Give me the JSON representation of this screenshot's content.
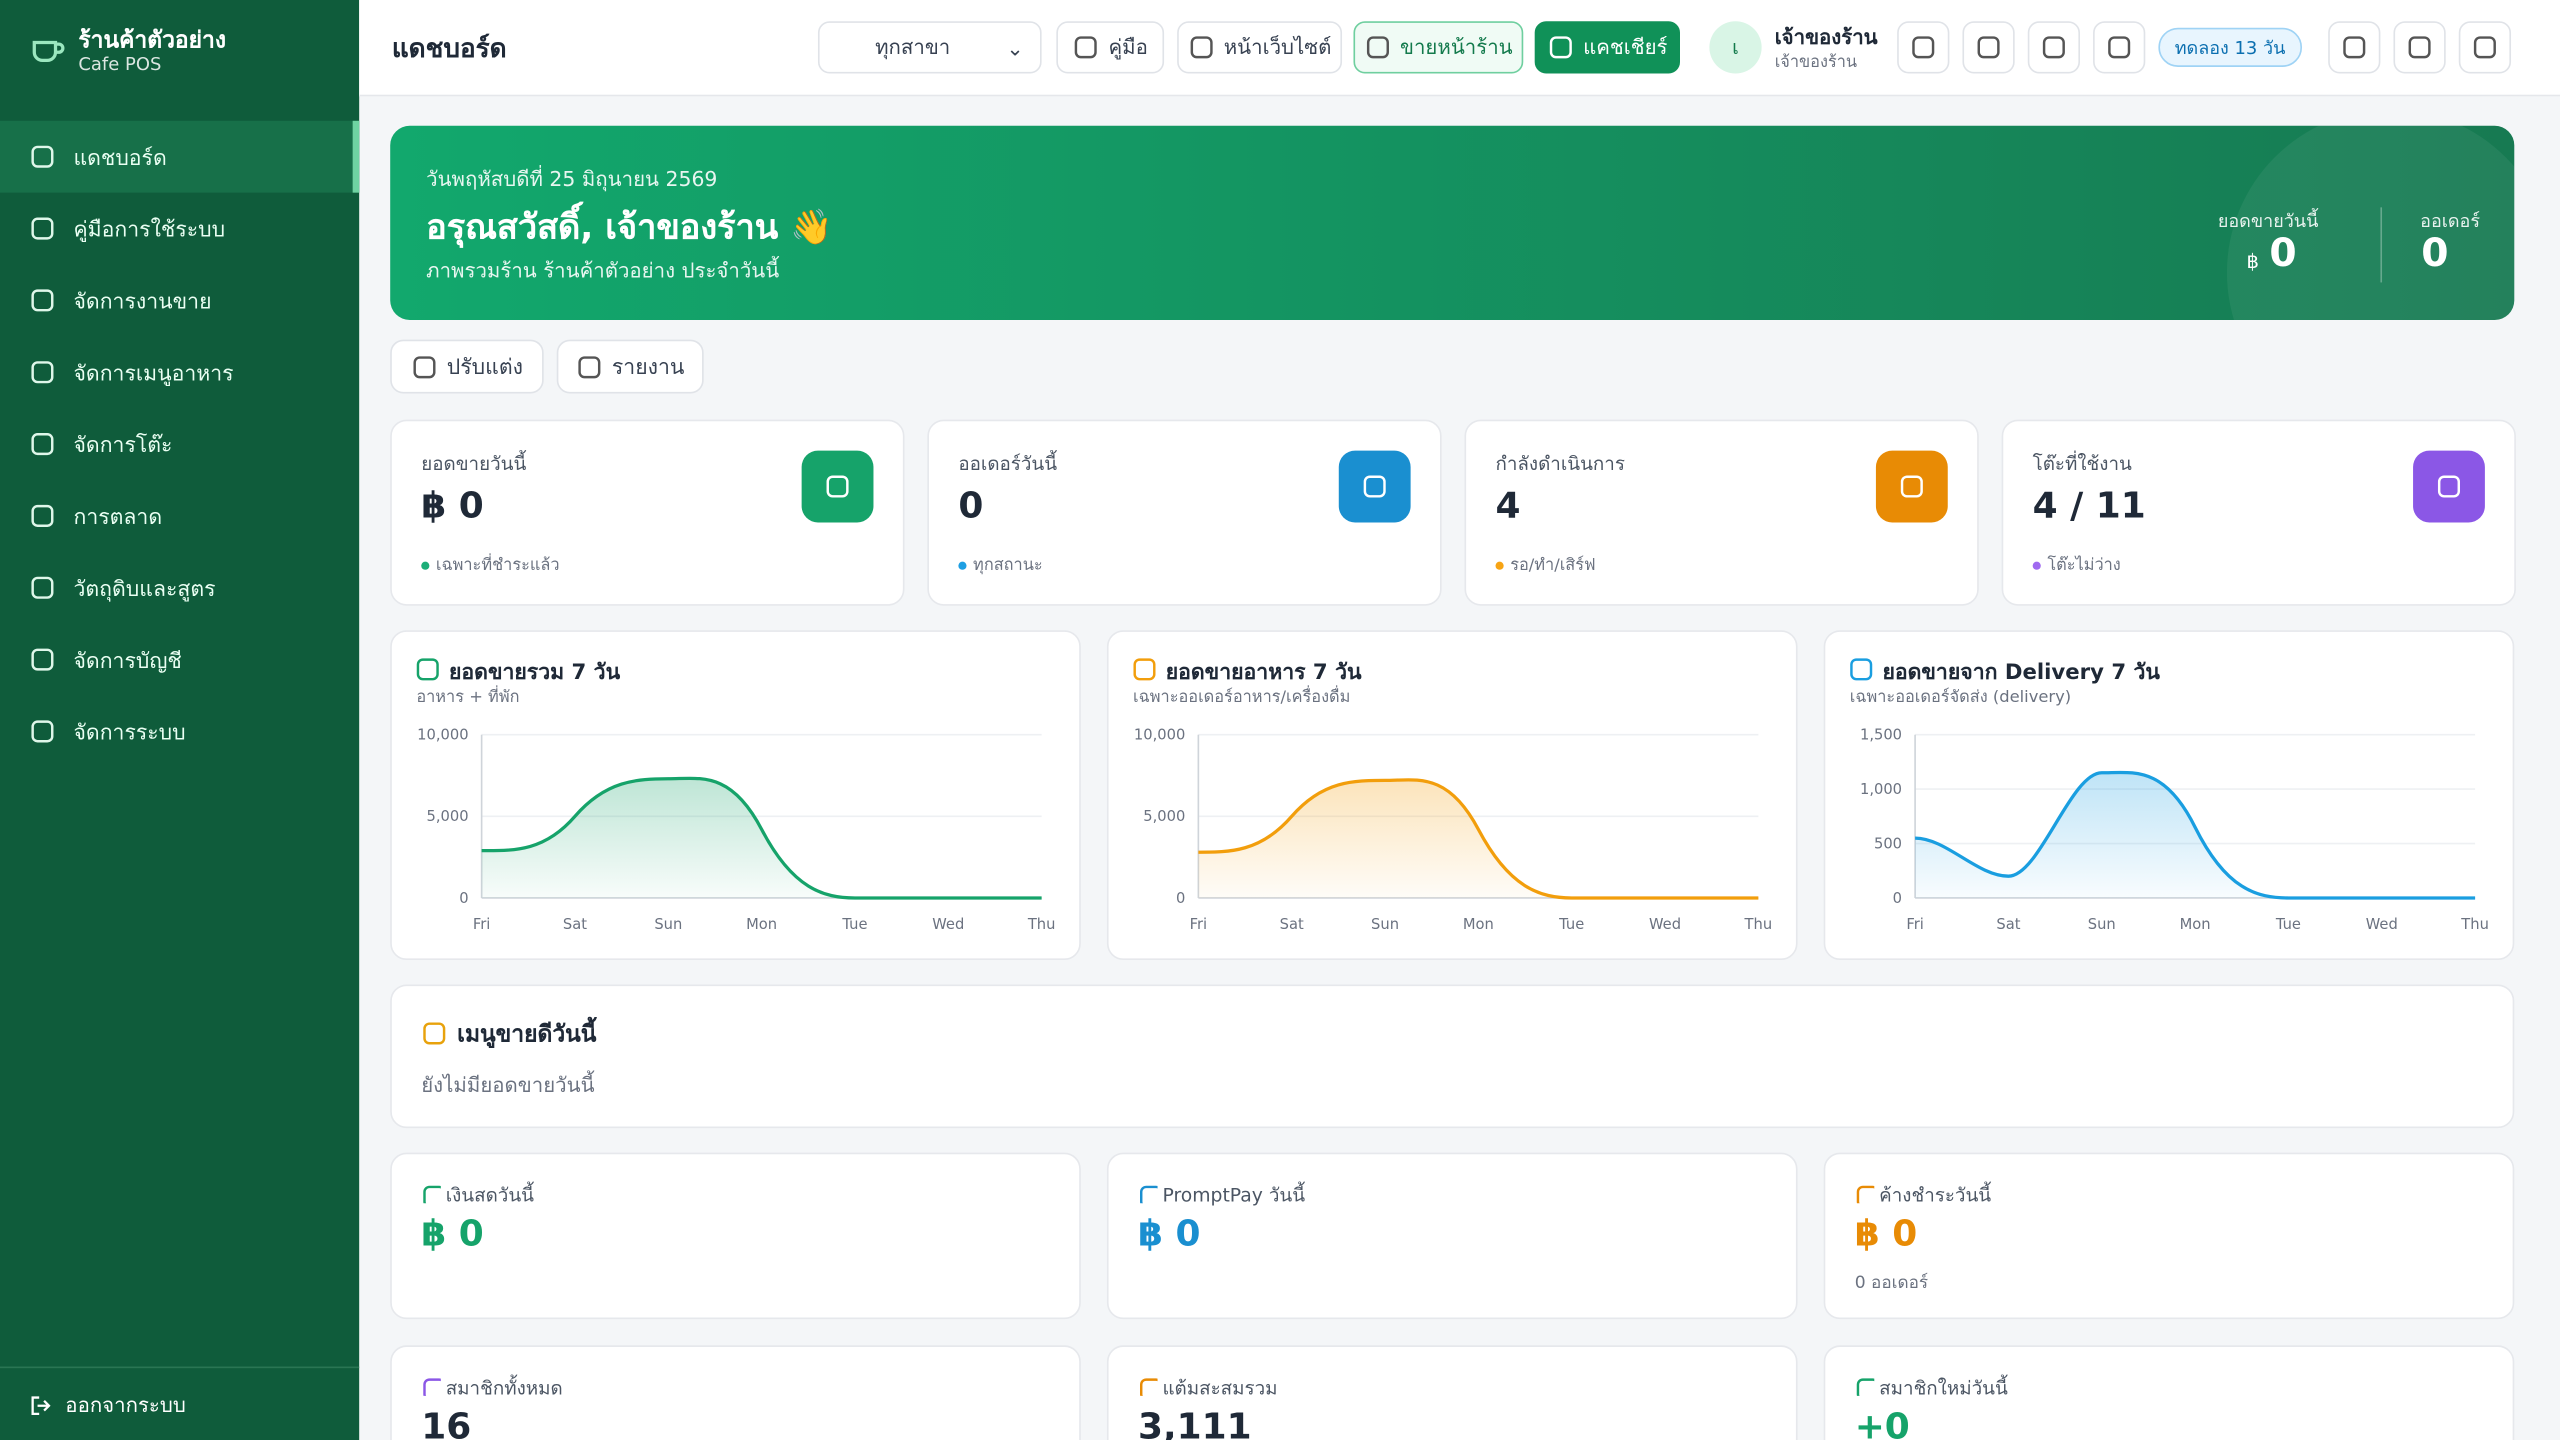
{
  "sidebar": {
    "brand": "ร้านค้าตัวอย่าง",
    "subtitle": "Cafe POS",
    "menu": [
      "แดชบอร์ด",
      "คู่มือการใช้ระบบ",
      "จัดการงานขาย",
      "จัดการเมนูอาหาร",
      "จัดการโต๊ะ",
      "การตลาด",
      "วัตถุดิบและสูตร",
      "จัดการบัญชี",
      "จัดการระบบ"
    ],
    "logout": "ออกจากระบบ"
  },
  "topbar": {
    "title": "แดชบอร์ด",
    "branch": "ทุกสาขา",
    "buttons": [
      "คู่มือ",
      "หน้าเว็บไซต์",
      "ขายหน้าร้าน",
      "แคชเชียร์"
    ],
    "avatar": "เ",
    "user_name": "เจ้าของร้าน",
    "user_role": "เจ้าของร้าน",
    "trial": "ทดลอง 13 วัน"
  },
  "banner": {
    "date": "วันพฤหัสบดีที่ 25 มิถุนายน 2569",
    "greeting": "อรุณสวัสดิ์, เจ้าของร้าน 👋",
    "subtitle": "ภาพรวมร้าน ร้านค้าตัวอย่าง ประจำวันนี้",
    "sales_label": "ยอดขายวันนี้",
    "currency": "฿",
    "sales": "0",
    "orders_label": "ออเดอร์",
    "orders": "0"
  },
  "actions": [
    "ปรับแต่ง",
    "รายงาน"
  ],
  "stats": [
    {
      "label": "ยอดขายวันนี้",
      "value": "฿ 0",
      "note": "เฉพาะที่ชำระแล้ว"
    },
    {
      "label": "ออเดอร์วันนี้",
      "value": "0",
      "note": "ทุกสถานะ"
    },
    {
      "label": "กำลังดำเนินการ",
      "value": "4",
      "note": "รอ/ทำ/เสิร์ฟ"
    },
    {
      "label": "โต๊ะที่ใช้งาน",
      "value": "4 / 11",
      "note": "โต๊ะไม่ว่าง"
    }
  ],
  "chart_data": [
    {
      "type": "line",
      "title": "ยอดขายรวม 7 วัน",
      "subtitle": "อาหาร + ที่พัก",
      "categories": [
        "Fri",
        "Sat",
        "Sun",
        "Mon",
        "Tue",
        "Wed",
        "Thu"
      ],
      "values": [
        2900,
        5000,
        7300,
        4200,
        0,
        0,
        0
      ],
      "color": "#16a36a",
      "ylim": [
        0,
        10000
      ],
      "yticks": [
        0,
        {
          "value": 5000,
          "label": "5,000"
        },
        {
          "value": 10000,
          "label": "10,000"
        }
      ],
      "grid": true
    },
    {
      "type": "line",
      "title": "ยอดขายอาหาร 7 วัน",
      "subtitle": "เฉพาะออเดอร์อาหาร/เครื่องดื่ม",
      "categories": [
        "Fri",
        "Sat",
        "Sun",
        "Mon",
        "Tue",
        "Wed",
        "Thu"
      ],
      "values": [
        2800,
        5000,
        7200,
        4200,
        0,
        0,
        0
      ],
      "color": "#f29e0c",
      "ylim": [
        0,
        10000
      ],
      "yticks": [
        0,
        {
          "value": 5000,
          "label": "5,000"
        },
        {
          "value": 10000,
          "label": "10,000"
        }
      ],
      "grid": true
    },
    {
      "type": "line",
      "title": "ยอดขายจาก Delivery 7 วัน",
      "subtitle": "เฉพาะออเดอร์จัดส่ง (delivery)",
      "categories": [
        "Fri",
        "Sat",
        "Sun",
        "Mon",
        "Tue",
        "Wed",
        "Thu"
      ],
      "values": [
        550,
        200,
        1150,
        650,
        0,
        0,
        0
      ],
      "color": "#1a9ee0",
      "ylim": [
        0,
        1500
      ],
      "yticks": [
        0,
        500,
        {
          "value": 1000,
          "label": "1,000"
        },
        {
          "value": 1500,
          "label": "1,500"
        }
      ],
      "grid": true
    }
  ],
  "top_menu": {
    "title": "เมนูขายดีวันนี้",
    "empty": "ยังไม่มียอดขายวันนี้"
  },
  "payments": [
    {
      "label": "เงินสดวันนี้",
      "value": "฿ 0"
    },
    {
      "label": "PromptPay วันนี้",
      "value": "฿ 0"
    },
    {
      "label": "ค้างชำระวันนี้",
      "value": "฿ 0",
      "note": "0 ออเดอร์"
    }
  ],
  "members": [
    {
      "label": "สมาชิกทั้งหมด",
      "value": "16"
    },
    {
      "label": "แต้มสะสมรวม",
      "value": "3,111"
    },
    {
      "label": "สมาชิกใหม่วันนี้",
      "value": "+0"
    }
  ]
}
